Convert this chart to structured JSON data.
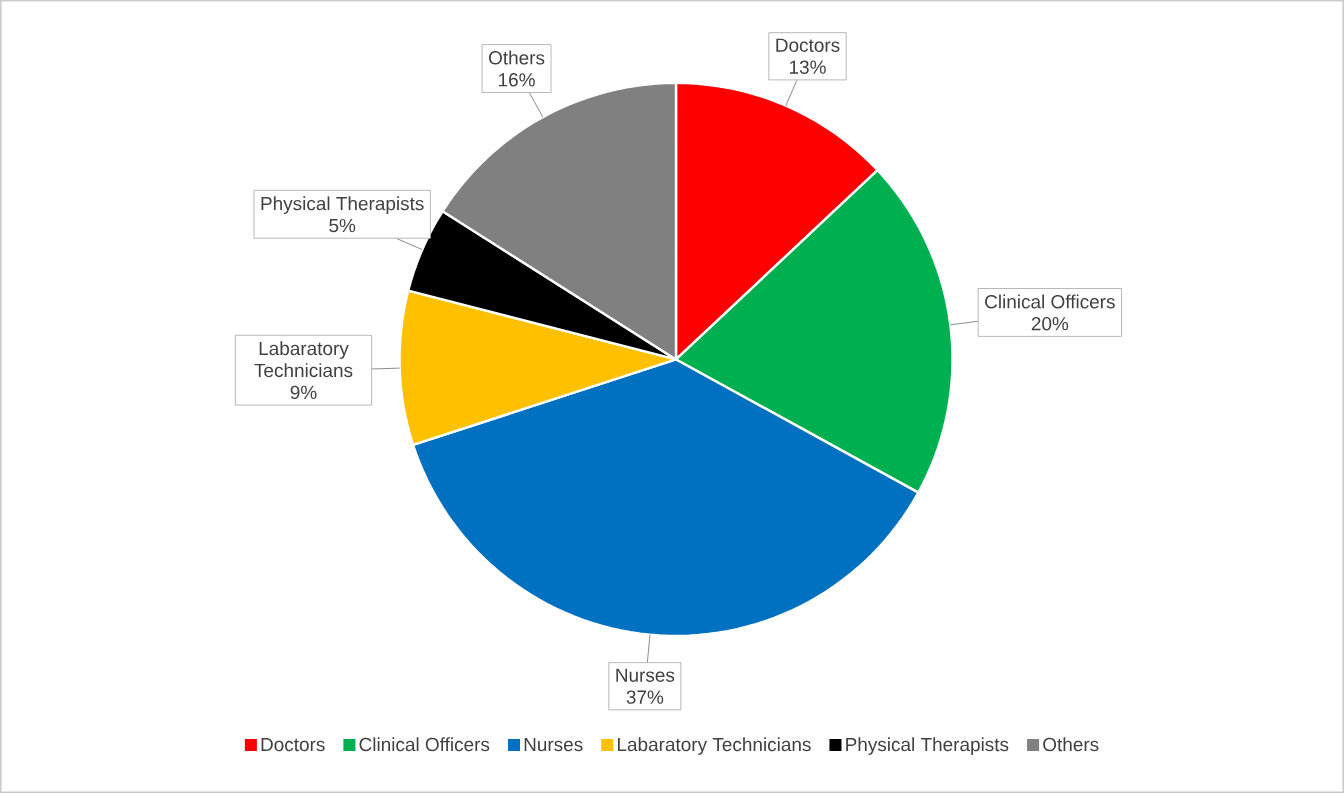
{
  "chart_data": {
    "type": "pie",
    "categories": [
      "Doctors",
      "Clinical Officers",
      "Nurses",
      "Labaratory Technicians",
      "Physical Therapists",
      "Others"
    ],
    "values": [
      13,
      20,
      37,
      9,
      5,
      16
    ],
    "value_labels": [
      "13%",
      "20%",
      "37%",
      "9%",
      "5%",
      "16%"
    ],
    "colors": [
      "#ff0000",
      "#00b050",
      "#0070c0",
      "#ffc000",
      "#000000",
      "#808080"
    ],
    "legend": "bottom"
  }
}
